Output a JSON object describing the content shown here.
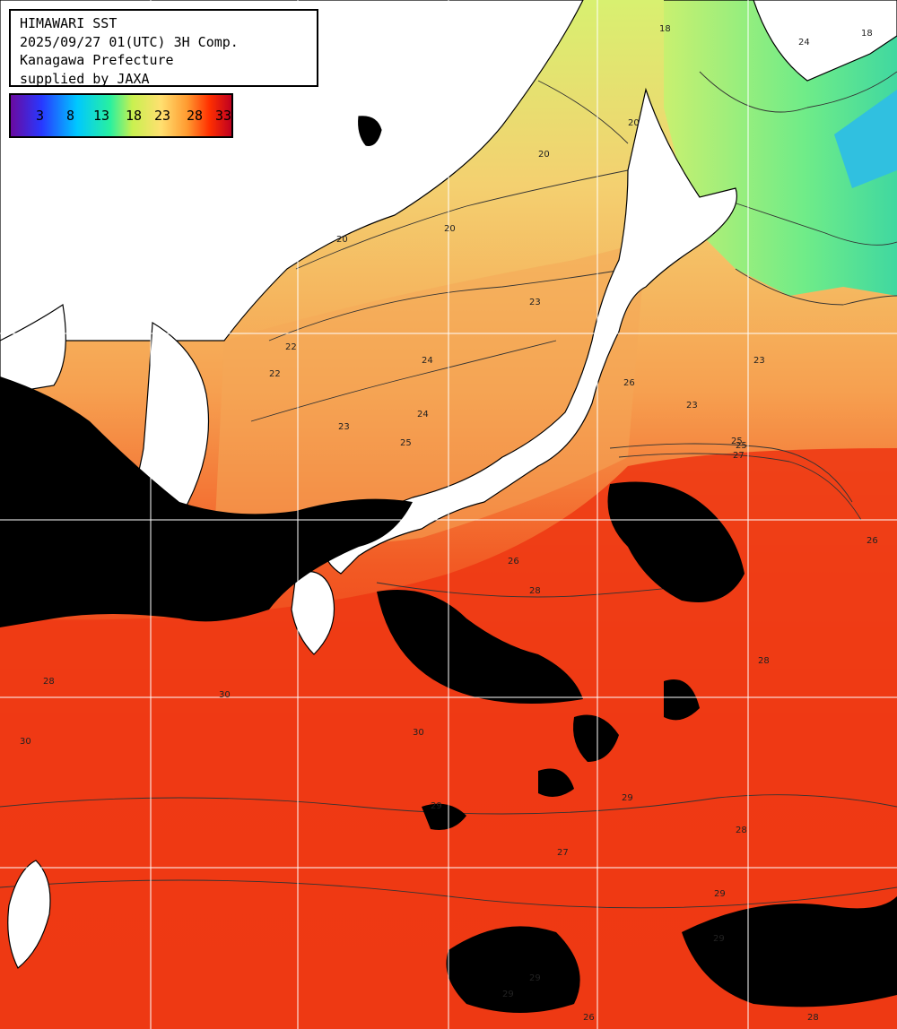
{
  "title": {
    "line1": "HIMAWARI SST",
    "line2": "2025/09/27 01(UTC) 3H Comp.",
    "line3": "Kanagawa Prefecture",
    "line4": "supplied by JAXA"
  },
  "legend": {
    "ticks": [
      "3",
      "8",
      "13",
      "18",
      "23",
      "28",
      "33"
    ],
    "gradient_colors": [
      "#6a0aa0",
      "#2838ff",
      "#00c8ff",
      "#28f0a0",
      "#c8f050",
      "#ffe070",
      "#ff9a30",
      "#ff3000",
      "#c00020"
    ]
  },
  "contour_labels": [
    "20",
    "18",
    "18",
    "24",
    "20",
    "22",
    "20",
    "23",
    "24",
    "22",
    "23",
    "20",
    "26",
    "25",
    "23",
    "24",
    "25",
    "23",
    "25",
    "27",
    "26",
    "28",
    "26",
    "28",
    "29",
    "30",
    "30",
    "28",
    "30",
    "29",
    "29",
    "27",
    "28",
    "29",
    "29",
    "29",
    "26",
    "28"
  ],
  "colors": {
    "land": "#ffffff",
    "cloud": "#000000",
    "sea_warm": "#ee3a14",
    "sea_mid": "#f6a050",
    "sea_cool": "#e8e070",
    "sea_cold": "#50e090",
    "grid": "#ffffff"
  }
}
